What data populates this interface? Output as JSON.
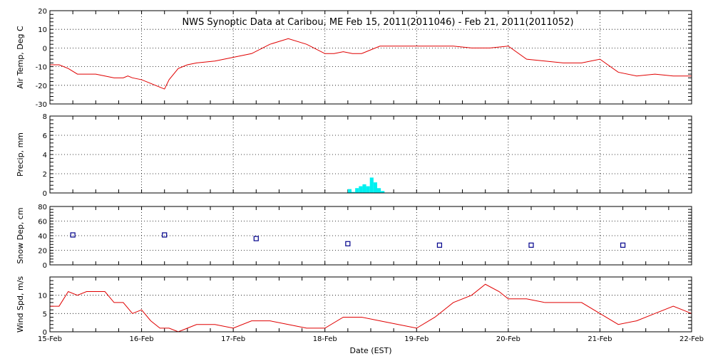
{
  "title": "NWS Synoptic Data at Caribou, ME   Feb 15, 2011(2011046) - Feb 21, 2011(2011052)",
  "chart_data": [
    {
      "type": "line",
      "ylabel": "Air Temp, Deg C",
      "ylim": [
        -30,
        20
      ],
      "yticks": [
        -30,
        -20,
        -10,
        0,
        10,
        20
      ],
      "color": "#e00000",
      "x": [
        0,
        0.1,
        0.2,
        0.3,
        0.4,
        0.5,
        0.6,
        0.7,
        0.8,
        0.85,
        0.9,
        1.0,
        1.1,
        1.2,
        1.25,
        1.3,
        1.4,
        1.5,
        1.6,
        1.8,
        2.0,
        2.2,
        2.4,
        2.6,
        2.8,
        3.0,
        3.1,
        3.2,
        3.3,
        3.4,
        3.5,
        3.6,
        3.7,
        3.8,
        4.0,
        4.2,
        4.4,
        4.6,
        4.8,
        5.0,
        5.2,
        5.4,
        5.6,
        5.8,
        6.0,
        6.2,
        6.4,
        6.6,
        6.8,
        7.0
      ],
      "y": [
        -9,
        -9,
        -11,
        -14,
        -14,
        -14,
        -15,
        -16,
        -16,
        -15,
        -16,
        -17,
        -19,
        -21,
        -22,
        -17,
        -11,
        -9,
        -8,
        -7,
        -5,
        -3,
        2,
        5,
        2,
        -3,
        -3,
        -2,
        -3,
        -3,
        -1,
        1,
        1,
        1,
        1,
        1,
        1,
        0,
        0,
        1,
        -6,
        -7,
        -8,
        -8,
        -6,
        -13,
        -15,
        -14,
        -15,
        -15
      ],
      "xlim": [
        0,
        7
      ]
    },
    {
      "type": "bar",
      "ylabel": "Precip, mm",
      "ylim": [
        0,
        8
      ],
      "yticks": [
        0,
        2,
        4,
        6,
        8
      ],
      "color": "#00f0f0",
      "x": [
        3.25,
        3.29,
        3.33,
        3.37,
        3.41,
        3.45,
        3.49,
        3.53,
        3.57,
        3.61
      ],
      "values": [
        0.4,
        0.1,
        0.5,
        0.7,
        0.9,
        0.7,
        1.6,
        1.1,
        0.5,
        0.2
      ],
      "xlim": [
        0,
        7
      ]
    },
    {
      "type": "scatter",
      "ylabel": "Snow Dep, cm",
      "ylim": [
        0,
        80
      ],
      "yticks": [
        0,
        20,
        40,
        60,
        80
      ],
      "color": "#00008b",
      "x": [
        0.25,
        1.25,
        2.25,
        3.25,
        4.25,
        5.25,
        6.25
      ],
      "y": [
        41,
        41,
        36,
        29,
        27,
        27,
        27
      ],
      "xlim": [
        0,
        7
      ]
    },
    {
      "type": "line",
      "ylabel": "Wind Spd, m/s",
      "ylim": [
        0,
        15
      ],
      "yticks": [
        0,
        5,
        10
      ],
      "color": "#e00000",
      "xlabel": "Date (EST)",
      "x": [
        0,
        0.1,
        0.2,
        0.3,
        0.4,
        0.5,
        0.6,
        0.7,
        0.8,
        0.9,
        1.0,
        1.1,
        1.2,
        1.3,
        1.4,
        1.5,
        1.6,
        1.8,
        2.0,
        2.2,
        2.4,
        2.6,
        2.8,
        3.0,
        3.2,
        3.4,
        3.6,
        3.8,
        4.0,
        4.2,
        4.4,
        4.6,
        4.75,
        4.9,
        5.0,
        5.2,
        5.4,
        5.6,
        5.8,
        6.0,
        6.2,
        6.4,
        6.6,
        6.8,
        7.0
      ],
      "y": [
        7,
        7,
        11,
        10,
        11,
        11,
        11,
        8,
        8,
        5,
        6,
        3,
        1,
        1,
        0,
        1,
        2,
        2,
        1,
        3,
        3,
        2,
        1,
        1,
        4,
        4,
        3,
        2,
        1,
        4,
        8,
        10,
        13,
        11,
        9,
        9,
        8,
        8,
        8,
        5,
        2,
        3,
        5,
        7,
        5
      ],
      "xlim": [
        0,
        7
      ]
    }
  ],
  "xaxis": {
    "ticks": [
      0,
      1,
      2,
      3,
      4,
      5,
      6,
      7
    ],
    "labels": [
      "15-Feb",
      "16-Feb",
      "17-Feb",
      "18-Feb",
      "19-Feb",
      "20-Feb",
      "21-Feb",
      "22-Feb"
    ],
    "label": "Date (EST)"
  },
  "grid": "dotted"
}
